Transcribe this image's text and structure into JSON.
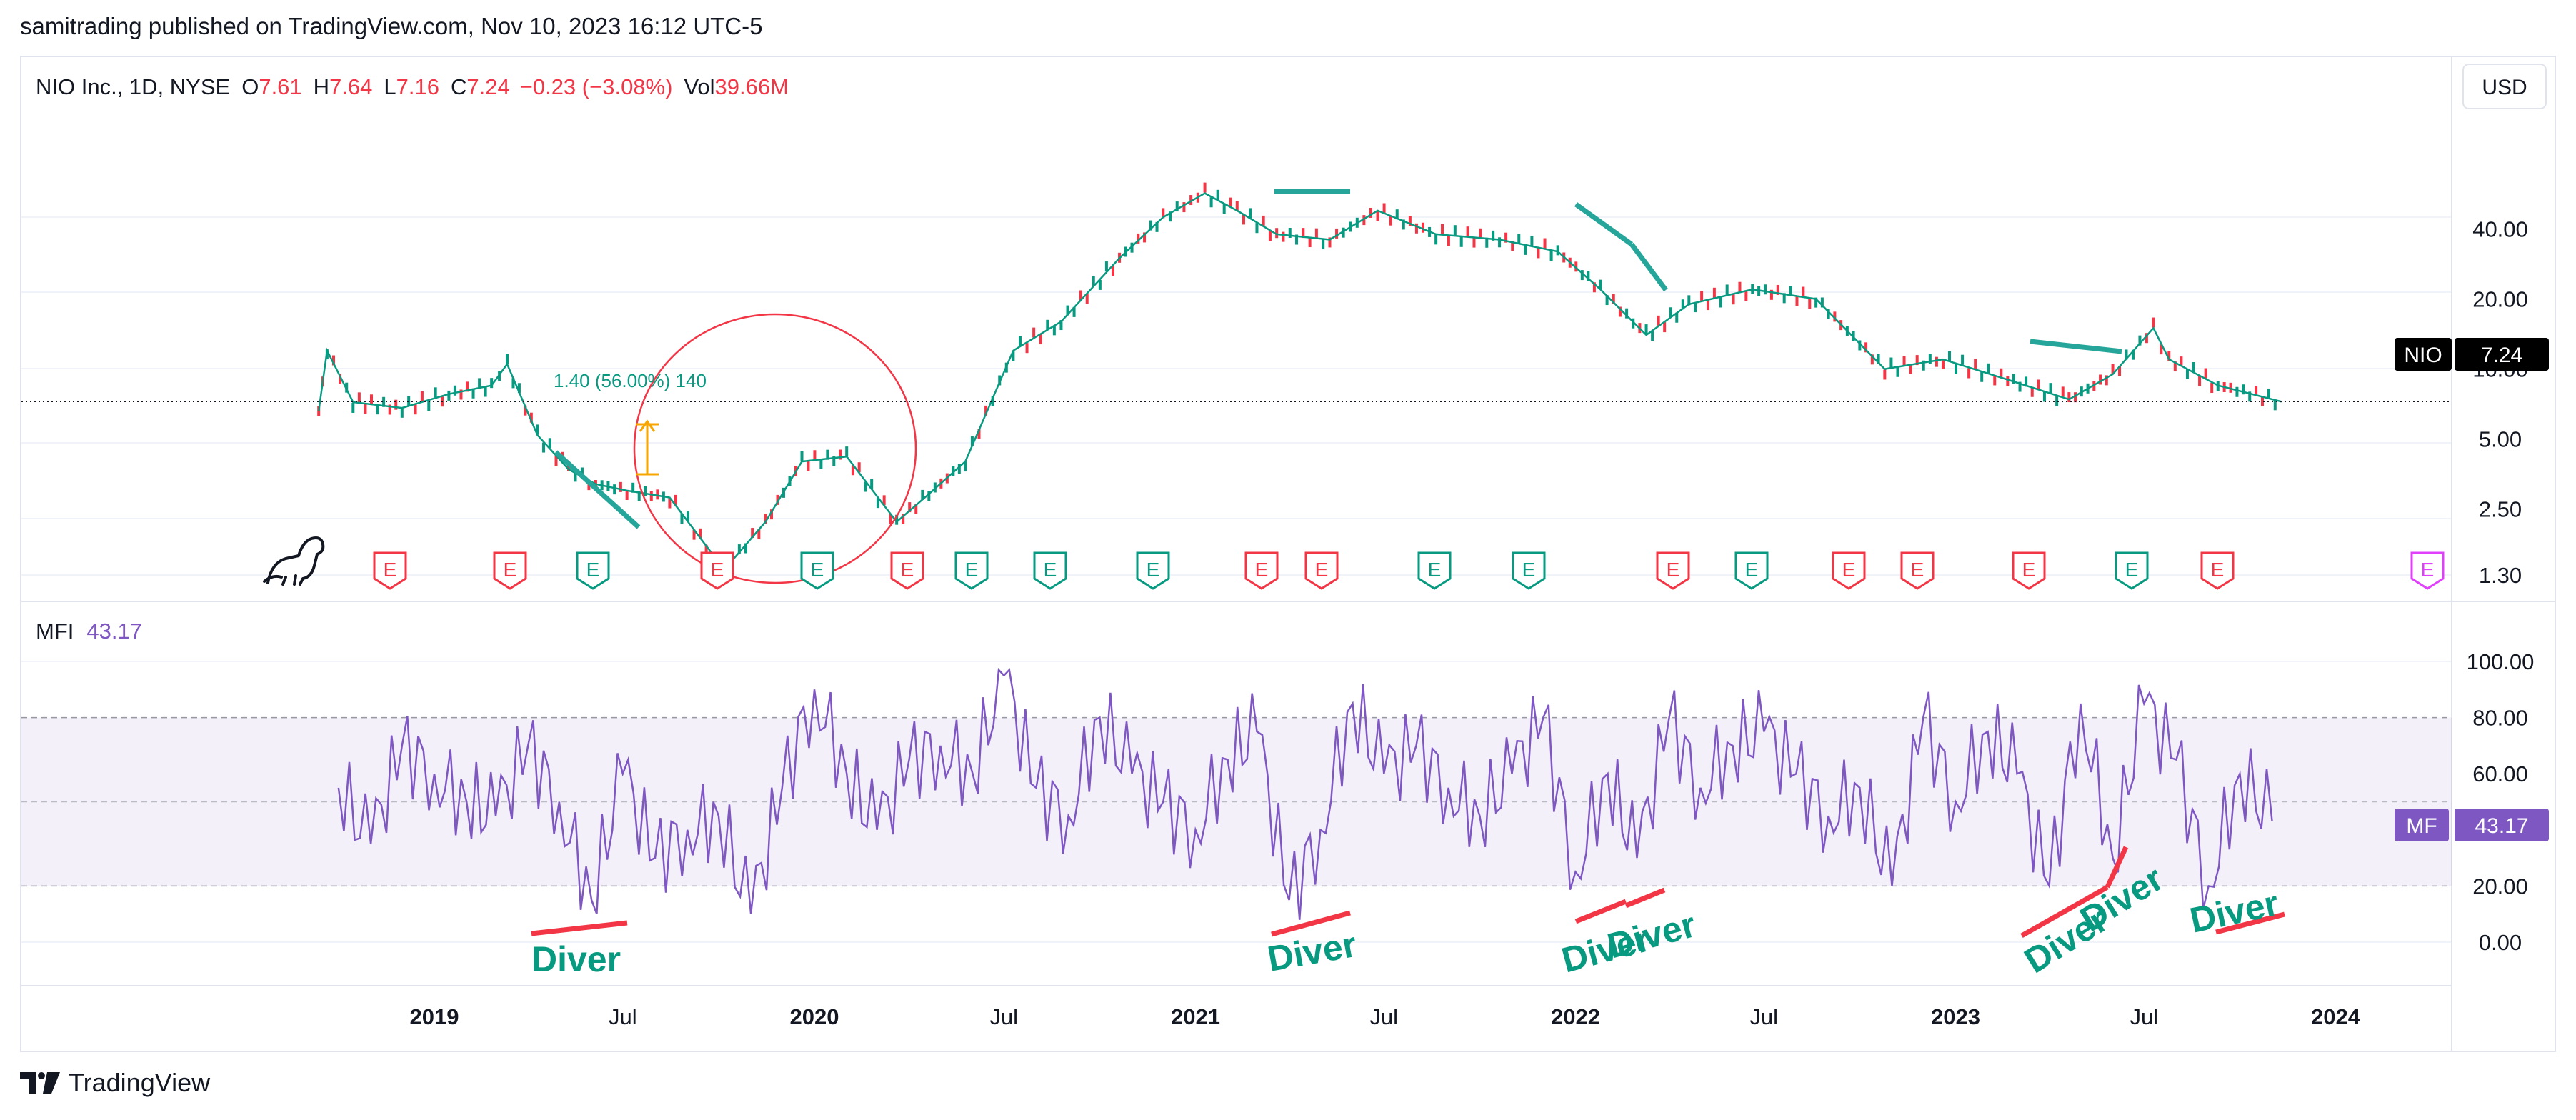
{
  "header": {
    "publisher": "samitrading published on TradingView.com, Nov 10, 2023 16:12 UTC-5"
  },
  "legend": {
    "symbol": "NIO Inc., 1D, NYSE",
    "o_label": "O",
    "o_value": "7.61",
    "h_label": "H",
    "h_value": "7.64",
    "l_label": "L",
    "l_value": "7.16",
    "c_label": "C",
    "c_value": "7.24",
    "change": "−0.23 (−3.08%)",
    "vol_label": "Vol",
    "vol_value": "39.66M"
  },
  "currency": "USD",
  "price_tag": {
    "symbol": "NIO",
    "value": "7.24"
  },
  "indicator": {
    "name": "MFI",
    "value": "43.17",
    "tag_label": "MF",
    "tag_value": "43.17"
  },
  "measure_label": "1.40 (56.00%) 140",
  "footer": {
    "brand": "TradingView"
  },
  "colors": {
    "up": "#089981",
    "down": "#f23645",
    "mfi": "#7e57c2",
    "earnings_red": "#f23645",
    "earnings_green": "#089981",
    "earnings_future": "#e040fb",
    "annotation_green": "#26a69a",
    "annotation_red": "#f23645"
  },
  "chart_data": [
    {
      "type": "line",
      "title": "NIO Inc., 1D, NYSE",
      "series": [
        {
          "name": "NIO",
          "x": [
            "2018-09-12",
            "2018-09-20",
            "2018-10-15",
            "2018-12-01",
            "2019-01-15",
            "2019-02-25",
            "2019-03-12",
            "2019-04-10",
            "2019-05-10",
            "2019-06-05",
            "2019-07-05",
            "2019-08-15",
            "2019-09-25",
            "2019-10-02",
            "2019-11-15",
            "2019-12-20",
            "2020-02-01",
            "2020-03-20",
            "2020-04-20",
            "2020-05-25",
            "2020-07-10",
            "2020-08-25",
            "2020-10-20",
            "2020-12-01",
            "2021-01-10",
            "2021-02-10",
            "2021-03-20",
            "2021-05-10",
            "2021-06-25",
            "2021-08-20",
            "2021-10-20",
            "2021-12-15",
            "2022-01-25",
            "2022-03-10",
            "2022-04-20",
            "2022-06-20",
            "2022-08-20",
            "2022-10-25",
            "2022-12-20",
            "2023-02-20",
            "2023-04-20",
            "2023-06-01",
            "2023-07-10",
            "2023-07-25",
            "2023-09-10",
            "2023-11-10"
          ],
          "y": [
            6.6,
            12,
            7.2,
            6.8,
            7.8,
            8.5,
            10.5,
            5.2,
            3.7,
            3.2,
            3.0,
            2.8,
            1.6,
            1.3,
            2.2,
            4.0,
            4.2,
            2.2,
            2.9,
            4.0,
            12,
            16,
            30,
            45,
            57,
            48,
            38,
            36,
            48,
            38,
            36,
            32,
            22,
            14,
            19,
            22,
            20,
            10,
            11,
            9.0,
            7.4,
            9.5,
            15,
            11,
            8.5,
            7.24
          ]
        }
      ],
      "ylim": [
        1.3,
        55
      ],
      "yscale": "log",
      "yticks": [
        "40.00",
        "20.00",
        "10.00",
        "5.00",
        "2.50",
        "1.30"
      ],
      "xticks": [
        "2019",
        "Jul",
        "2020",
        "Jul",
        "2021",
        "Jul",
        "2022",
        "Jul",
        "2023",
        "Jul",
        "2024"
      ],
      "earnings_markers": [
        "E",
        "E",
        "E",
        "E",
        "E",
        "E",
        "E",
        "E",
        "E",
        "E",
        "E",
        "E",
        "E",
        "E",
        "E",
        "E",
        "E",
        "E",
        "E",
        "E",
        "E"
      ],
      "annotations": [
        "1.40 (56.00%) 140"
      ]
    },
    {
      "type": "line",
      "title": "MFI",
      "series": [
        {
          "name": "MFI",
          "x": [
            "2018-10-01",
            "2018-11-01",
            "2018-12-01",
            "2019-01-01",
            "2019-02-01",
            "2019-03-01",
            "2019-04-01",
            "2019-05-01",
            "2019-06-01",
            "2019-07-01",
            "2019-08-01",
            "2019-09-01",
            "2019-10-01",
            "2019-11-01",
            "2019-12-01",
            "2020-01-01",
            "2020-02-01",
            "2020-03-01",
            "2020-04-01",
            "2020-05-01",
            "2020-06-01",
            "2020-07-01",
            "2020-08-01",
            "2020-09-01",
            "2020-10-01",
            "2020-11-01",
            "2020-12-01",
            "2021-01-01",
            "2021-02-01",
            "2021-03-01",
            "2021-04-01",
            "2021-05-01",
            "2021-06-01",
            "2021-07-01",
            "2021-08-01",
            "2021-09-01",
            "2021-10-01",
            "2021-11-01",
            "2021-12-01",
            "2022-01-01",
            "2022-02-01",
            "2022-03-01",
            "2022-04-01",
            "2022-05-01",
            "2022-06-01",
            "2022-07-01",
            "2022-08-01",
            "2022-09-01",
            "2022-10-01",
            "2022-11-01",
            "2022-12-01",
            "2023-01-01",
            "2023-02-01",
            "2023-03-01",
            "2023-04-01",
            "2023-05-01",
            "2023-06-01",
            "2023-07-01",
            "2023-08-01",
            "2023-09-01",
            "2023-10-01",
            "2023-11-01"
          ],
          "y": [
            55,
            35,
            70,
            60,
            50,
            45,
            70,
            50,
            15,
            60,
            30,
            40,
            45,
            10,
            55,
            90,
            60,
            40,
            65,
            70,
            60,
            95,
            55,
            45,
            80,
            60,
            50,
            40,
            65,
            75,
            15,
            40,
            85,
            60,
            70,
            55,
            45,
            60,
            80,
            25,
            60,
            30,
            80,
            55,
            70,
            75,
            60,
            45,
            55,
            20,
            80,
            50,
            75,
            60,
            20,
            85,
            30,
            85,
            65,
            20,
            60,
            43.17
          ]
        }
      ],
      "ylim": [
        0,
        100
      ],
      "yticks": [
        "100.00",
        "80.00",
        "60.00",
        "40.00",
        "20.00",
        "0.00"
      ],
      "bands": [
        20,
        80
      ],
      "midline": 50,
      "annotations": [
        "Diver",
        "Diver",
        "Diver",
        "Diver",
        "Diver",
        "Diver",
        "Diver",
        "Diver"
      ]
    }
  ]
}
